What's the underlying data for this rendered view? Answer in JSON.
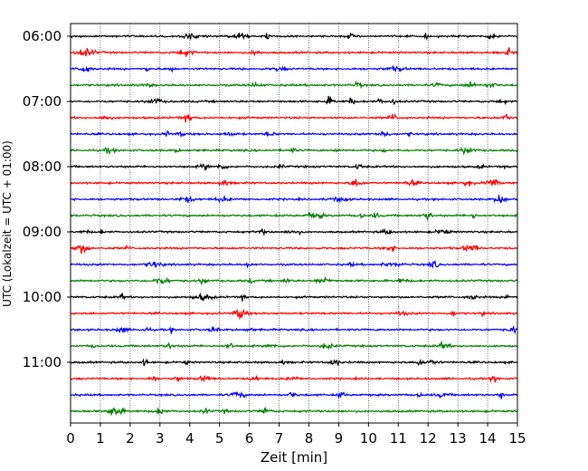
{
  "chart_data": {
    "type": "line",
    "title": "",
    "xlabel": "Zeit  [min]",
    "ylabel": "UTC (Lokalzeit = UTC + 01:00)",
    "xlim": [
      0,
      15
    ],
    "x_ticks": [
      "0",
      "1",
      "2",
      "3",
      "4",
      "5",
      "6",
      "7",
      "8",
      "9",
      "10",
      "11",
      "12",
      "13",
      "14",
      "15"
    ],
    "y_tick_labels": [
      "06:00",
      "07:00",
      "08:00",
      "09:00",
      "10:00",
      "11:00"
    ],
    "grid": "vertical dotted at each minute",
    "trace_colors": [
      "#000000",
      "#ff0000",
      "#0000ff",
      "#008000"
    ],
    "series": [
      {
        "start": "06:00",
        "color": "#000000",
        "values": []
      },
      {
        "start": "06:15",
        "color": "#ff0000",
        "values": []
      },
      {
        "start": "06:30",
        "color": "#0000ff",
        "values": []
      },
      {
        "start": "06:45",
        "color": "#008000",
        "values": []
      },
      {
        "start": "07:00",
        "color": "#000000",
        "values": []
      },
      {
        "start": "07:15",
        "color": "#ff0000",
        "values": []
      },
      {
        "start": "07:30",
        "color": "#0000ff",
        "values": []
      },
      {
        "start": "07:45",
        "color": "#008000",
        "values": []
      },
      {
        "start": "08:00",
        "color": "#000000",
        "values": []
      },
      {
        "start": "08:15",
        "color": "#ff0000",
        "values": []
      },
      {
        "start": "08:30",
        "color": "#0000ff",
        "values": []
      },
      {
        "start": "08:45",
        "color": "#008000",
        "values": []
      },
      {
        "start": "09:00",
        "color": "#000000",
        "values": []
      },
      {
        "start": "09:15",
        "color": "#ff0000",
        "values": []
      },
      {
        "start": "09:30",
        "color": "#0000ff",
        "values": []
      },
      {
        "start": "09:45",
        "color": "#008000",
        "values": []
      },
      {
        "start": "10:00",
        "color": "#000000",
        "values": []
      },
      {
        "start": "10:15",
        "color": "#ff0000",
        "values": []
      },
      {
        "start": "10:30",
        "color": "#0000ff",
        "values": []
      },
      {
        "start": "10:45",
        "color": "#008000",
        "values": []
      },
      {
        "start": "11:00",
        "color": "#000000",
        "values": []
      },
      {
        "start": "11:15",
        "color": "#ff0000",
        "values": []
      },
      {
        "start": "11:30",
        "color": "#0000ff",
        "values": []
      },
      {
        "start": "11:45",
        "color": "#008000",
        "values": []
      }
    ]
  }
}
